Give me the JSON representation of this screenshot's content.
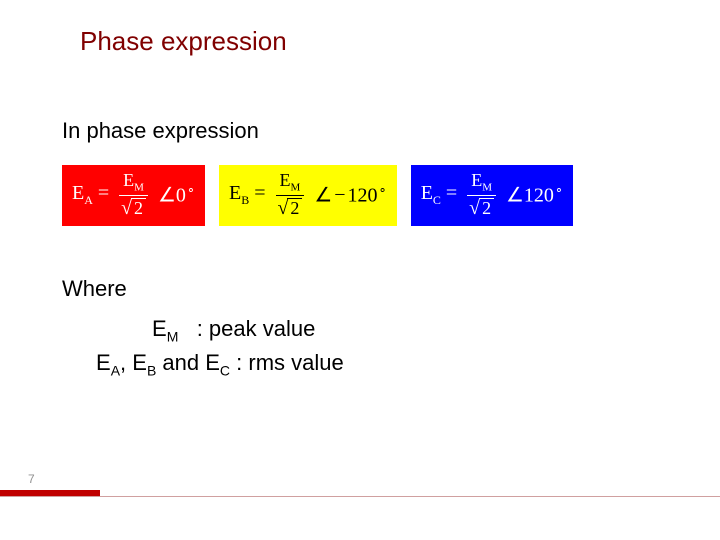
{
  "title": "Phase expression",
  "subtitle": "In phase expression",
  "equations": {
    "A": {
      "lhs_base": "E",
      "lhs_sub": "A",
      "num_base": "E",
      "num_sub": "M",
      "radicand": "2",
      "angle_val": "0"
    },
    "B": {
      "lhs_base": "E",
      "lhs_sub": "B",
      "num_base": "E",
      "num_sub": "M",
      "radicand": "2",
      "angle_val": "120",
      "neg": "−"
    },
    "C": {
      "lhs_base": "E",
      "lhs_sub": "C",
      "num_base": "E",
      "num_sub": "M",
      "radicand": "2",
      "angle_val": "120"
    }
  },
  "where_label": "Where",
  "defs": {
    "peak": {
      "sym": "E",
      "sub": "M",
      "text": ": peak value"
    },
    "rms": {
      "s1": "E",
      "s1s": "A",
      "c1": ", ",
      "s2": "E",
      "s2s": "B",
      "mid": " and ",
      "s3": "E",
      "s3s": "C",
      "text": " : rms value"
    }
  },
  "page_number": "7",
  "colors": {
    "title": "#800000",
    "eqA_bg": "#ff0000",
    "eqA_fg": "#ffffff",
    "eqB_bg": "#ffff00",
    "eqB_fg": "#000000",
    "eqC_bg": "#0000ff",
    "eqC_fg": "#ffffff",
    "footer_accent": "#c00000",
    "footer_line": "#d0a0a0",
    "page_num": "#909090"
  },
  "fonts": {
    "title_size_pt": 20,
    "body_size_pt": 17,
    "eq_size_pt": 15
  }
}
